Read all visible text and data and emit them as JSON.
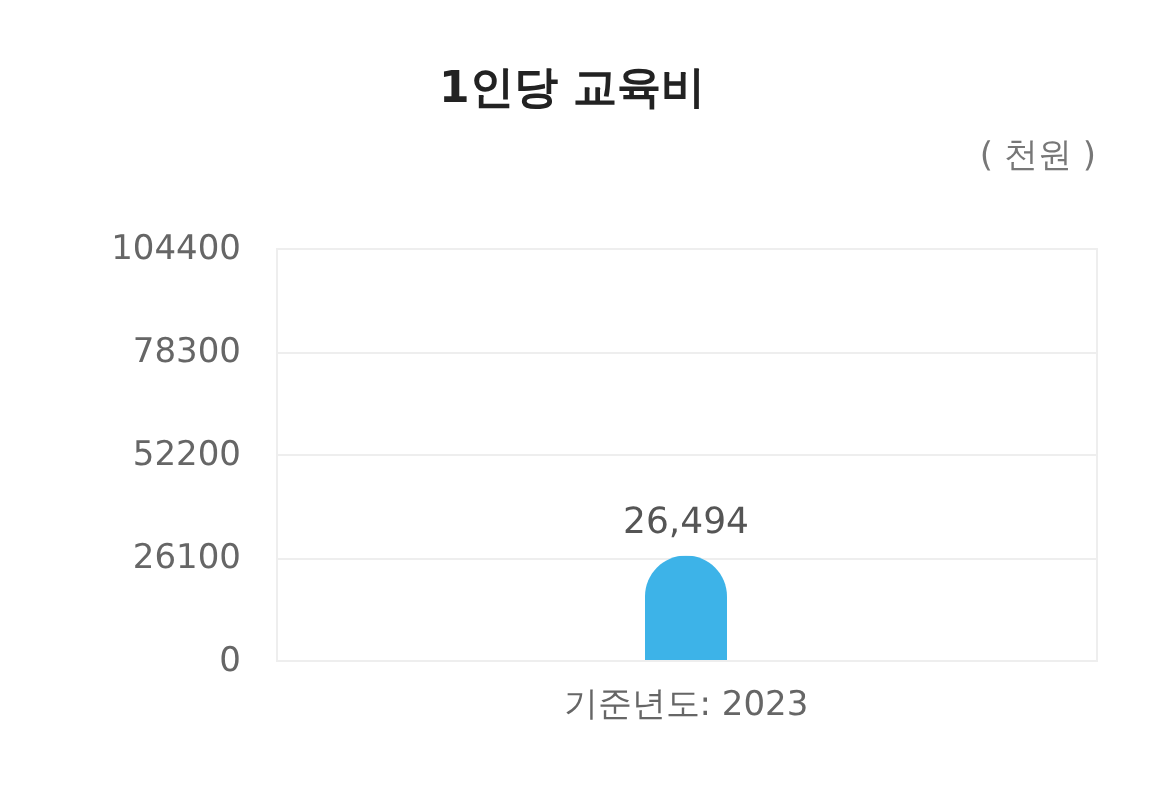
{
  "chart_data": {
    "type": "bar",
    "title": "1인당 교육비",
    "subtitle": "( 천원 )",
    "categories": [
      "기준년도: 2023"
    ],
    "values": [
      26494
    ],
    "value_labels": [
      "26,494"
    ],
    "color": "#3db3e8",
    "ylim": [
      0,
      104400
    ],
    "yticks": [
      0,
      26100,
      52200,
      78300,
      104400
    ],
    "grid": "y"
  }
}
